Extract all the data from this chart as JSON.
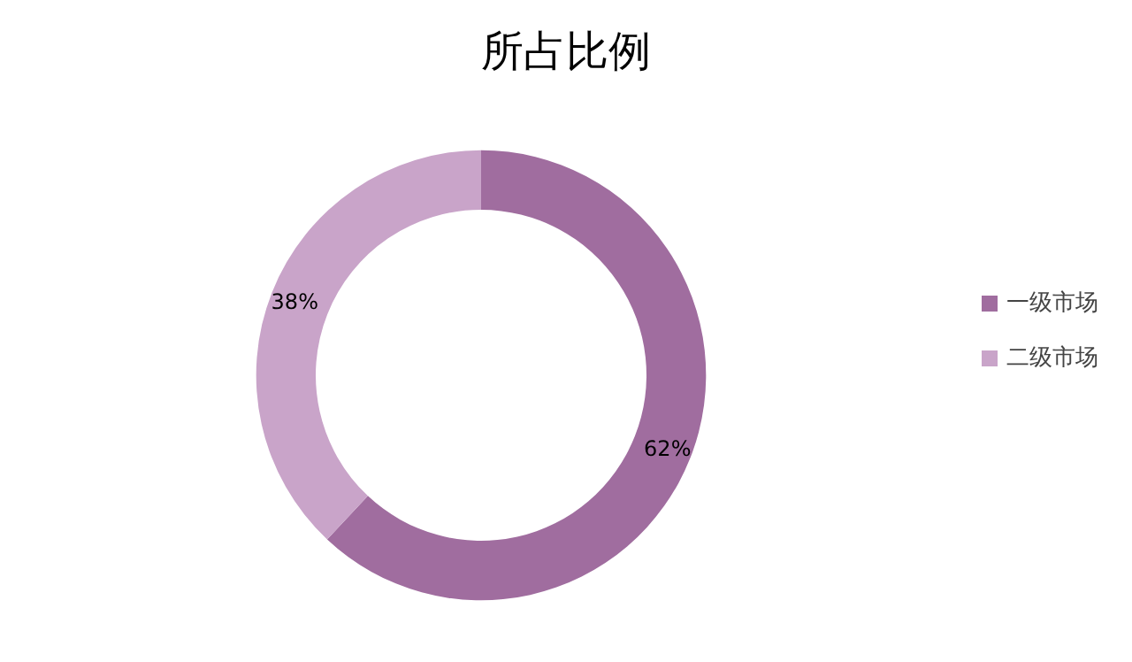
{
  "chart_data": {
    "type": "donut",
    "title": "所占比例",
    "categories": [
      "一级市场",
      "二级市场"
    ],
    "values": [
      62,
      38
    ],
    "colors": [
      "#a06d9f",
      "#c9a4c9"
    ],
    "value_labels": [
      "62%",
      "38%"
    ],
    "legend": "right"
  }
}
